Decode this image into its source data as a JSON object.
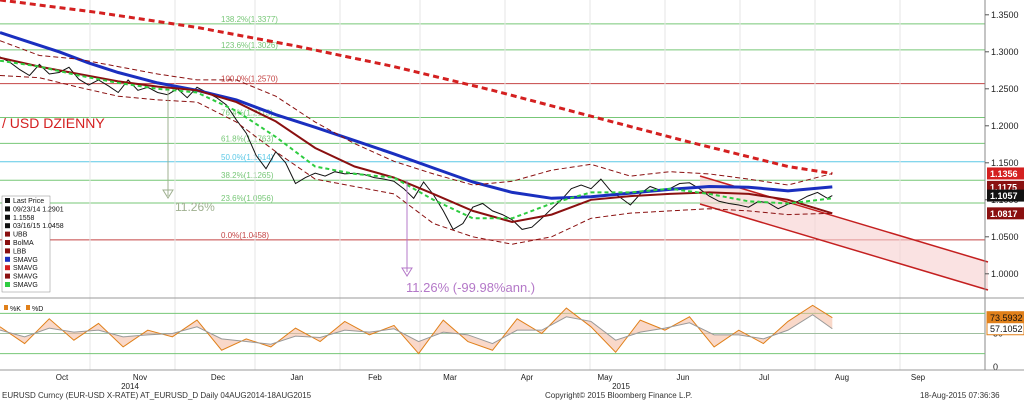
{
  "chart_data": {
    "type": "line",
    "title": "/ USD DZIENNY",
    "footer": {
      "left": "EURUSD Curncy (EUR-USD X-RATE) AT_EURUSD_D  Daily 04AUG2014-18AUG2015",
      "center": "Copyright© 2015 Bloomberg Finance L.P.",
      "right": "18-Aug-2015 07:36:36"
    },
    "x_ticks": {
      "months": [
        "Oct",
        "Nov",
        "Dec",
        "Jan",
        "Feb",
        "Mar",
        "Apr",
        "May",
        "Jun",
        "Jul",
        "Aug",
        "Sep"
      ],
      "years": [
        "2014",
        "2015"
      ]
    },
    "price_axis": {
      "ylim": [
        0.97,
        1.37
      ],
      "ticks": [
        "1.3500",
        "1.3000",
        "1.2500",
        "1.2000",
        "1.1500",
        "1.1000",
        "1.0500",
        "1.0000"
      ],
      "tick_values": [
        1.35,
        1.3,
        1.25,
        1.2,
        1.15,
        1.1,
        1.05,
        1.0
      ]
    },
    "price_badges": [
      {
        "label": "1.1356",
        "value": 1.1356,
        "color": "#d42020"
      },
      {
        "label": "1.1175",
        "value": 1.1175,
        "color": "#8a1010"
      },
      {
        "label": "1.1057",
        "value": 1.1057,
        "color": "#111111"
      },
      {
        "label": "1.0817",
        "value": 1.0817,
        "color": "#8a1010"
      }
    ],
    "fib_levels": [
      {
        "label": "138.2%(1.3377)",
        "value": 1.3377,
        "color": "#77c777"
      },
      {
        "label": "123.6%(1.3026)",
        "value": 1.3026,
        "color": "#77c777"
      },
      {
        "label": "100.0%(1.2570)",
        "value": 1.257,
        "color": "#c44444"
      },
      {
        "label": "76.4%(1.2113)",
        "value": 1.2113,
        "color": "#77c777"
      },
      {
        "label": "61.8%(1.1763)",
        "value": 1.1763,
        "color": "#77c777"
      },
      {
        "label": "50.0%(1.1514)",
        "value": 1.1514,
        "color": "#5bc8e6"
      },
      {
        "label": "38.2%(1.1265)",
        "value": 1.1265,
        "color": "#77c777"
      },
      {
        "label": "23.6%(1.0956)",
        "value": 1.0956,
        "color": "#77c777"
      },
      {
        "label": "0.0%(1.0458)",
        "value": 1.0458,
        "color": "#c44444"
      }
    ],
    "annotations": [
      {
        "label": "11.26%",
        "color": "#9fb090"
      },
      {
        "label": "11.26% (-99.98%ann.)",
        "color": "#b478c8"
      }
    ],
    "legend": [
      {
        "label": "Last Price",
        "color": "#111111"
      },
      {
        "label": "09/23/14 1.2901",
        "color": "#111111"
      },
      {
        "label": "1.1558",
        "color": "#111111"
      },
      {
        "label": "03/16/15 1.0458",
        "color": "#111111"
      },
      {
        "label": "UBB",
        "color": "#8a1010"
      },
      {
        "label": "BolMA",
        "color": "#8a1010"
      },
      {
        "label": "LBB",
        "color": "#8a1010"
      },
      {
        "label": "SMAVG",
        "color": "#1a2fbf"
      },
      {
        "label": "SMAVG",
        "color": "#d42020"
      },
      {
        "label": "SMAVG",
        "color": "#8a1010"
      },
      {
        "label": "SMAVG",
        "color": "#2ecc40"
      }
    ],
    "series": [
      {
        "name": "Last Price",
        "color": "#111111",
        "x": [
          0,
          10,
          20,
          30,
          40,
          50,
          60,
          70,
          80,
          90,
          100,
          110,
          120,
          130,
          140,
          150,
          160,
          170,
          180,
          190,
          200,
          210,
          220,
          230,
          240,
          250,
          260,
          270,
          280,
          290,
          300,
          310,
          320,
          330,
          340,
          350,
          360,
          370,
          380,
          390,
          400,
          410,
          420,
          430,
          440,
          450,
          460,
          470,
          480,
          490,
          500,
          510,
          520,
          530,
          540,
          550,
          560,
          570,
          580,
          590,
          600,
          610,
          620,
          630,
          640,
          650,
          660,
          670,
          680,
          690,
          700,
          710,
          720,
          730,
          740,
          750,
          760,
          770,
          780,
          790,
          800,
          810,
          820,
          830,
          840,
          845
        ],
        "values": [
          1.293,
          1.286,
          1.276,
          1.268,
          1.283,
          1.27,
          1.272,
          1.279,
          1.263,
          1.255,
          1.262,
          1.254,
          1.245,
          1.262,
          1.248,
          1.252,
          1.245,
          1.242,
          1.25,
          1.238,
          1.252,
          1.245,
          1.238,
          1.228,
          1.208,
          1.19,
          1.16,
          1.142,
          1.165,
          1.15,
          1.122,
          1.13,
          1.136,
          1.132,
          1.138,
          1.135,
          1.136,
          1.134,
          1.13,
          1.128,
          1.125,
          1.115,
          1.102,
          1.124,
          1.107,
          1.085,
          1.06,
          1.068,
          1.09,
          1.095,
          1.085,
          1.08,
          1.073,
          1.06,
          1.063,
          1.075,
          1.088,
          1.1,
          1.115,
          1.12,
          1.115,
          1.128,
          1.112,
          1.103,
          1.093,
          1.108,
          1.118,
          1.113,
          1.115,
          1.122,
          1.123,
          1.115,
          1.105,
          1.098,
          1.095,
          1.093,
          1.09,
          1.098,
          1.096,
          1.088,
          1.094,
          1.098,
          1.105,
          1.11,
          1.102,
          1.1057
        ]
      },
      {
        "name": "SMAVG",
        "color": "#1a2fbf",
        "x": [
          0,
          30,
          60,
          90,
          120,
          160,
          200,
          240,
          280,
          320,
          360,
          400,
          440,
          480,
          520,
          560,
          600,
          640,
          680,
          720,
          760,
          800,
          845
        ],
        "values": [
          1.326,
          1.313,
          1.3,
          1.285,
          1.272,
          1.258,
          1.248,
          1.235,
          1.215,
          1.198,
          1.18,
          1.162,
          1.143,
          1.124,
          1.11,
          1.102,
          1.104,
          1.109,
          1.114,
          1.118,
          1.117,
          1.112,
          1.1175
        ]
      },
      {
        "name": "SMAVG",
        "color": "#d42020",
        "x": [
          0,
          100,
          200,
          300,
          400,
          500,
          600,
          700,
          800,
          845
        ],
        "values": [
          1.37,
          1.353,
          1.333,
          1.308,
          1.28,
          1.248,
          1.213,
          1.178,
          1.145,
          1.1356
        ]
      },
      {
        "name": "SMAVG",
        "color": "#8a1010",
        "x": [
          0,
          40,
          80,
          120,
          160,
          200,
          240,
          280,
          320,
          360,
          400,
          440,
          480,
          520,
          560,
          600,
          640,
          680,
          720,
          760,
          800,
          845
        ],
        "values": [
          1.292,
          1.28,
          1.27,
          1.26,
          1.253,
          1.248,
          1.232,
          1.206,
          1.17,
          1.145,
          1.13,
          1.108,
          1.085,
          1.07,
          1.08,
          1.1,
          1.105,
          1.108,
          1.11,
          1.108,
          1.1,
          1.0817
        ]
      },
      {
        "name": "SMAVG",
        "color": "#2ecc40",
        "x": [
          0,
          40,
          80,
          120,
          160,
          200,
          240,
          280,
          320,
          360,
          400,
          440,
          480,
          520,
          560,
          600,
          640,
          680,
          720,
          760,
          800,
          845
        ],
        "values": [
          1.288,
          1.28,
          1.268,
          1.258,
          1.25,
          1.245,
          1.22,
          1.185,
          1.145,
          1.135,
          1.13,
          1.1,
          1.075,
          1.075,
          1.095,
          1.11,
          1.11,
          1.115,
          1.108,
          1.098,
          1.095,
          1.102
        ]
      },
      {
        "name": "UBB",
        "color": "#8a1010",
        "x": [
          0,
          40,
          80,
          120,
          160,
          200,
          240,
          280,
          320,
          360,
          400,
          440,
          480,
          520,
          560,
          600,
          640,
          680,
          720,
          760,
          800,
          845
        ],
        "values": [
          1.315,
          1.295,
          1.29,
          1.28,
          1.27,
          1.262,
          1.262,
          1.24,
          1.205,
          1.176,
          1.152,
          1.135,
          1.12,
          1.125,
          1.14,
          1.148,
          1.132,
          1.138,
          1.135,
          1.128,
          1.12,
          1.1356
        ]
      },
      {
        "name": "LBB",
        "color": "#8a1010",
        "x": [
          0,
          40,
          80,
          120,
          160,
          200,
          240,
          280,
          320,
          360,
          400,
          440,
          480,
          520,
          560,
          600,
          640,
          680,
          720,
          760,
          800,
          845
        ],
        "values": [
          1.268,
          1.265,
          1.252,
          1.24,
          1.235,
          1.232,
          1.205,
          1.165,
          1.128,
          1.118,
          1.108,
          1.068,
          1.05,
          1.04,
          1.05,
          1.075,
          1.082,
          1.085,
          1.088,
          1.085,
          1.08,
          1.0817
        ]
      }
    ],
    "stochastic": {
      "legend": [
        {
          "label": "%K",
          "color": "#e0801a"
        },
        {
          "label": "%D",
          "color": "#e0801a"
        }
      ],
      "ylim": [
        0,
        100
      ],
      "ticks": [
        "50",
        "0"
      ],
      "tick_values": [
        50,
        0
      ],
      "badges": [
        {
          "label": "73.5932",
          "value": 73.5932,
          "color": "#e0801a"
        },
        {
          "label": "57.1052",
          "value": 57.1052,
          "color": "#ffffff"
        }
      ],
      "levels": [
        80,
        50,
        20
      ],
      "k": {
        "x": [
          0,
          25,
          50,
          75,
          100,
          125,
          150,
          175,
          200,
          225,
          250,
          275,
          300,
          325,
          350,
          375,
          400,
          425,
          450,
          475,
          500,
          525,
          550,
          575,
          600,
          625,
          650,
          675,
          700,
          725,
          750,
          775,
          800,
          825,
          845
        ],
        "values": [
          60,
          35,
          72,
          40,
          65,
          30,
          55,
          45,
          70,
          25,
          42,
          30,
          58,
          38,
          68,
          48,
          62,
          20,
          70,
          38,
          25,
          72,
          50,
          88,
          60,
          22,
          70,
          55,
          75,
          30,
          55,
          35,
          68,
          92,
          73.6
        ]
      },
      "d": {
        "x": [
          0,
          25,
          50,
          75,
          100,
          125,
          150,
          175,
          200,
          225,
          250,
          275,
          300,
          325,
          350,
          375,
          400,
          425,
          450,
          475,
          500,
          525,
          550,
          575,
          600,
          625,
          650,
          675,
          700,
          725,
          750,
          775,
          800,
          825,
          845
        ],
        "values": [
          55,
          45,
          58,
          52,
          55,
          45,
          48,
          50,
          60,
          42,
          38,
          34,
          46,
          44,
          55,
          52,
          57,
          38,
          52,
          48,
          35,
          55,
          55,
          75,
          68,
          40,
          52,
          58,
          66,
          48,
          48,
          42,
          55,
          78,
          57.1
        ]
      }
    }
  }
}
